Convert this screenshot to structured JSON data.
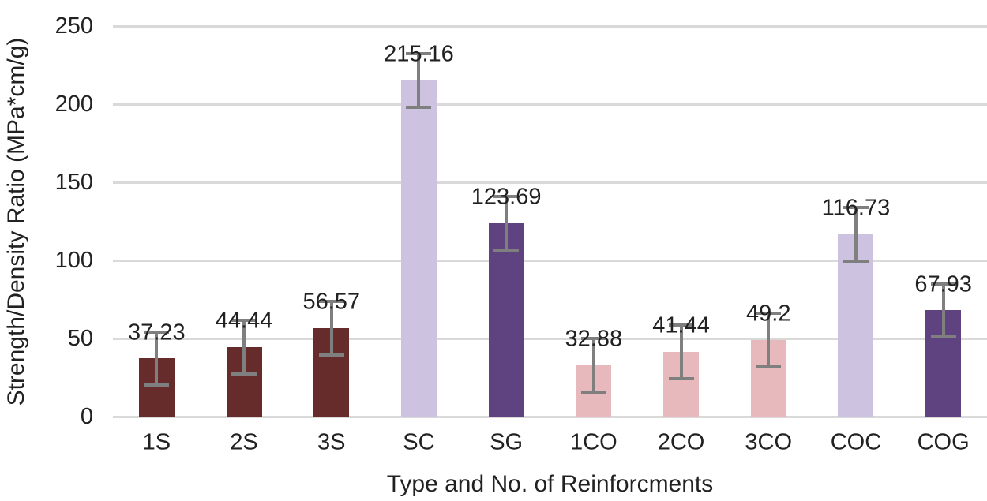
{
  "chart_data": {
    "type": "bar",
    "title": "",
    "xlabel": "Type and No. of Reinforcments",
    "ylabel": "Strength/Density Ratio (MPa*cm/g)",
    "categories": [
      "1S",
      "2S",
      "3S",
      "SC",
      "SG",
      "1CO",
      "2CO",
      "3CO",
      "COC",
      "COG"
    ],
    "values": [
      37.23,
      44.44,
      56.57,
      215.16,
      123.69,
      32.88,
      41.44,
      49.2,
      116.73,
      67.93
    ],
    "value_labels": [
      "37.23",
      "44.44",
      "56.57",
      "215.16",
      "123.69",
      "32.88",
      "41.44",
      "49.2",
      "116.73",
      "67.93"
    ],
    "error_bar_value": 18,
    "ylim": [
      0,
      250
    ],
    "yticks": [
      "0",
      "50",
      "100",
      "150",
      "200",
      "250"
    ],
    "grid": "horizontal",
    "legend_position": "none",
    "bar_colors": [
      "#662B2B",
      "#662B2B",
      "#662B2B",
      "#CDC2DF",
      "#5E4380",
      "#E7B9BD",
      "#E7B9BD",
      "#E7B9BD",
      "#CDC2DF",
      "#5E4380"
    ],
    "error_bar_color": "#7F7F7F",
    "gridline_color": "#D9D9D9",
    "text_color": "#212121"
  }
}
